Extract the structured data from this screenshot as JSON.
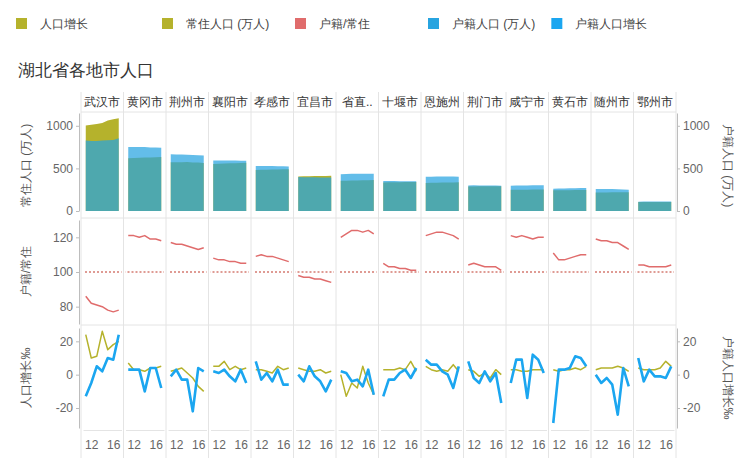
{
  "chart_data": {
    "type": "small_multiples",
    "title": "湖北省各地市人口",
    "categories": [
      "武汉市",
      "黄冈市",
      "荆州市",
      "襄阳市",
      "孝感市",
      "宜昌市",
      "省直..",
      "十堰市",
      "恩施州",
      "荆门市",
      "咸宁市",
      "黄石市",
      "随州市",
      "鄂州市"
    ],
    "x": [
      2011,
      2012,
      2013,
      2014,
      2015,
      2016,
      2017
    ],
    "xlim": [
      2010.5,
      2017.5
    ],
    "xticks": [
      {
        "value": 2012,
        "label": "12"
      },
      {
        "value": 2016,
        "label": "16"
      }
    ],
    "grid": false,
    "legend": "top",
    "rows": [
      {
        "ylabel": "常住人口 (万人)",
        "ylim": [
          0,
          1150
        ],
        "yticks": [
          0,
          500,
          1000
        ],
        "y2label": "户籍人口 (万人)",
        "y2lim": [
          0,
          1150
        ],
        "y2ticks": [
          0,
          500,
          1000
        ],
        "series": [
          {
            "name": "常住人口 (万人)",
            "type": "area",
            "color": "#b5b22c",
            "values": [
              [
                1002,
                1012,
                1022,
                1034,
                1061,
                1077,
                1089
              ],
              [
                618,
                621,
                624,
                627,
                629,
                630,
                633
              ],
              [
                572,
                571,
                572,
                574,
                570,
                569,
                564
              ],
              [
                552,
                555,
                557,
                559,
                561,
                563,
                565
              ],
              [
                482,
                483,
                484,
                486,
                488,
                489,
                491
              ],
              [
                406,
                408,
                409,
                410,
                411,
                412,
                413
              ],
              [
                355,
                356,
                357,
                358,
                360,
                362,
                364
              ],
              [
                335,
                336,
                337,
                338,
                339,
                340,
                341
              ],
              [
                330,
                331,
                331,
                333,
                334,
                335,
                336
              ],
              [
                288,
                288,
                289,
                289,
                290,
                290,
                290
              ],
              [
                248,
                248,
                249,
                250,
                251,
                252,
                253
              ],
              [
                243,
                243,
                244,
                244,
                245,
                246,
                247
              ],
              [
                217,
                217,
                218,
                219,
                220,
                221,
                221
              ],
              [
                105,
                105,
                105,
                106,
                106,
                107,
                107
              ]
            ]
          },
          {
            "name": "户籍人口 (万人)",
            "type": "area",
            "color": "#27a4e0",
            "axis": "y2",
            "values": [
              [
                827,
                822,
                822,
                827,
                829,
                834,
                853
              ],
              [
                752,
                752,
                750,
                751,
                745,
                745,
                741
              ],
              [
                665,
                664,
                663,
                661,
                657,
                655,
                652
              ],
              [
                593,
                594,
                593,
                593,
                592,
                591,
                590
              ],
              [
                529,
                529,
                528,
                528,
                526,
                524,
                523
              ],
              [
                399,
                397,
                396,
                395,
                394,
                393,
                392
              ],
              [
                430,
                433,
                436,
                438,
                438,
                437,
                436
              ],
              [
                352,
                352,
                351,
                350,
                349,
                349,
                348
              ],
              [
                401,
                403,
                404,
                404,
                405,
                404,
                401
              ],
              [
                300,
                301,
                300,
                299,
                299,
                298,
                297
              ],
              [
                297,
                299,
                300,
                300,
                301,
                302,
                302
              ],
              [
                262,
                263,
                264,
                266,
                268,
                269,
                270
              ],
              [
                258,
                258,
                257,
                257,
                256,
                253,
                250
              ],
              [
                110,
                111,
                111,
                111,
                111,
                111,
                112
              ]
            ]
          }
        ]
      },
      {
        "ylabel": "户籍/常住",
        "ylim": [
          70,
          130
        ],
        "yticks": [
          80,
          100,
          120
        ],
        "reference_line": {
          "value": 100,
          "color": "#c0392b",
          "line_style": "dotted"
        },
        "series": [
          {
            "name": "户籍/常住",
            "type": "line",
            "color": "#e06c6c",
            "values": [
              [
                86,
                82,
                81,
                80,
                78,
                77,
                78
              ],
              [
                121,
                121,
                120,
                121,
                119,
                119,
                118
              ],
              [
                117,
                116,
                116,
                115,
                114,
                113,
                114
              ],
              [
                108,
                107,
                107,
                106,
                106,
                105,
                105
              ],
              [
                109,
                110,
                109,
                109,
                108,
                107,
                106
              ],
              [
                98,
                97,
                97,
                96,
                96,
                95,
                94
              ],
              [
                120,
                122,
                124,
                124,
                123,
                124,
                122
              ],
              [
                105,
                103,
                103,
                102,
                102,
                101,
                101
              ],
              [
                121,
                122,
                123,
                123,
                122,
                121,
                119
              ],
              [
                104,
                105,
                104,
                103,
                103,
                103,
                101
              ],
              [
                121,
                120,
                121,
                120,
                119,
                120,
                120
              ],
              [
                111,
                107,
                107,
                108,
                109,
                110,
                110
              ],
              [
                119,
                118,
                118,
                117,
                117,
                115,
                113
              ],
              [
                104,
                104,
                103,
                103,
                103,
                103,
                104
              ]
            ]
          }
        ]
      },
      {
        "ylabel": "人口增长‰",
        "ylim": [
          -32,
          28
        ],
        "yticks": [
          -20,
          0,
          20
        ],
        "y2label": "户籍人口增长‰",
        "y2lim": [
          -32,
          28
        ],
        "y2ticks": [
          -20,
          0,
          20
        ],
        "series": [
          {
            "name": "人口增长",
            "type": "line",
            "color": "#b5b22c",
            "values": [
              [
                24,
                10,
                11,
                26,
                15,
                18,
                20
              ],
              [
                7,
                3,
                3,
                2,
                4,
                4,
                5
              ],
              [
                2,
                3,
                4,
                1,
                -2,
                -7,
                -10
              ],
              [
                5,
                5,
                8,
                3,
                5,
                3,
                4
              ],
              [
                3,
                3,
                2,
                1,
                5,
                3,
                4
              ],
              [
                4,
                3,
                2,
                2,
                3,
                1,
                2
              ],
              [
                0,
                -13,
                -5,
                -8,
                5,
                -5,
                -12
              ],
              [
                3,
                3,
                3,
                4,
                3,
                8,
                2
              ],
              [
                5,
                3,
                2,
                3,
                2,
                6,
                2
              ],
              [
                3,
                2,
                -1,
                1,
                -2,
                3,
                0
              ],
              [
                3,
                3,
                2,
                2,
                3,
                3,
                3
              ],
              [
                3,
                2,
                3,
                3,
                4,
                3,
                5
              ],
              [
                3,
                4,
                4,
                4,
                5,
                4,
                2
              ],
              [
                4,
                3,
                3,
                3,
                4,
                8,
                5
              ]
            ]
          },
          {
            "name": "户籍人口增长",
            "type": "line",
            "color": "#1ba6f0",
            "axis": "y2",
            "values": [
              [
                -13,
                -5,
                5,
                2,
                10,
                9,
                24
              ],
              [
                3,
                3,
                3,
                -10,
                4,
                4,
                -8
              ],
              [
                -1,
                3,
                -3,
                -3,
                -22,
                4,
                2
              ],
              [
                2,
                1,
                3,
                -1,
                -4,
                3,
                -5
              ],
              [
                8,
                -3,
                1,
                -4,
                3,
                -6,
                -6
              ],
              [
                0,
                -4,
                5,
                -1,
                -4,
                -10,
                -3
              ],
              [
                2,
                1,
                -4,
                -3,
                -7,
                3,
                -12
              ],
              [
                -13,
                -3,
                -3,
                1,
                3,
                -2,
                4
              ],
              [
                9,
                6,
                6,
                2,
                0,
                -8,
                5
              ],
              [
                8,
                -2,
                -5,
                2,
                -4,
                1,
                -17
              ],
              [
                -5,
                9,
                9,
                -14,
                12,
                9,
                1
              ],
              [
                -29,
                3,
                3,
                4,
                11,
                10,
                5
              ],
              [
                0,
                -5,
                -2,
                -6,
                -24,
                4,
                -7
              ],
              [
                10,
                -4,
                3,
                -1,
                -1,
                -2,
                5
              ]
            ]
          }
        ]
      }
    ]
  }
}
